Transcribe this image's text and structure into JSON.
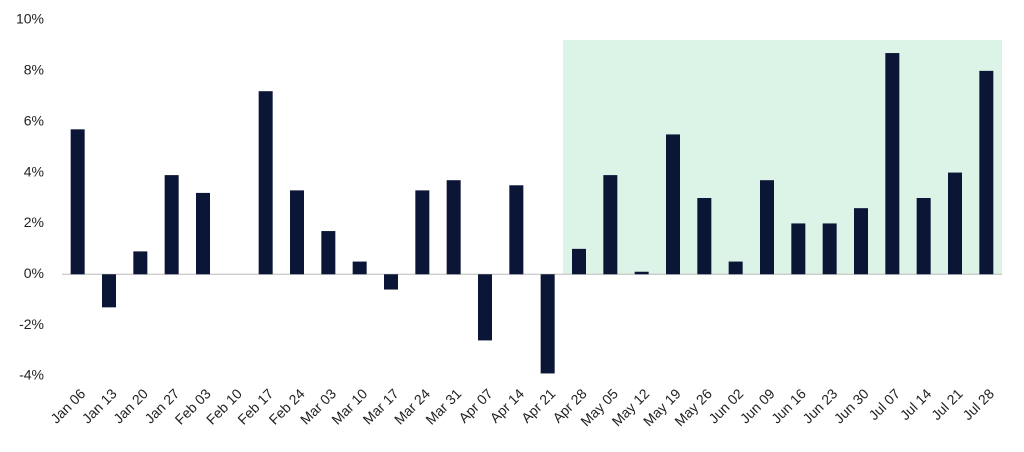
{
  "chart_data": {
    "type": "bar",
    "categories": [
      "Jan 06",
      "Jan 13",
      "Jan 20",
      "Jan 27",
      "Feb 03",
      "Feb 10",
      "Feb 17",
      "Feb 24",
      "Mar 03",
      "Mar 10",
      "Mar 17",
      "Mar 24",
      "Mar 31",
      "Apr 07",
      "Apr 14",
      "Apr 21",
      "Apr 28",
      "May 05",
      "May 12",
      "May 19",
      "May 26",
      "Jun 02",
      "Jun 09",
      "Jun 16",
      "Jun 23",
      "Jun 30",
      "Jul 07",
      "Jul 14",
      "Jul 21",
      "Jul 28"
    ],
    "values": [
      5.7,
      -1.3,
      0.9,
      3.9,
      3.2,
      0,
      7.2,
      3.3,
      1.7,
      0.5,
      -0.6,
      3.3,
      3.7,
      -2.6,
      3.5,
      -3.9,
      1.0,
      3.9,
      0.1,
      5.5,
      3.0,
      0.5,
      3.7,
      2.0,
      2.0,
      2.6,
      8.7,
      3.0,
      4.0,
      8.0
    ],
    "color": "#0b1535",
    "ylim": [
      -4,
      10
    ],
    "yticks": [
      {
        "value": -4,
        "label": "-4%"
      },
      {
        "value": -2,
        "label": "-2%"
      },
      {
        "value": 0,
        "label": "0%"
      },
      {
        "value": 2,
        "label": "2%"
      },
      {
        "value": 4,
        "label": "4%"
      },
      {
        "value": 6,
        "label": "6%"
      },
      {
        "value": 8,
        "label": "8%"
      },
      {
        "value": 10,
        "label": "10%"
      }
    ],
    "grid": false
  }
}
